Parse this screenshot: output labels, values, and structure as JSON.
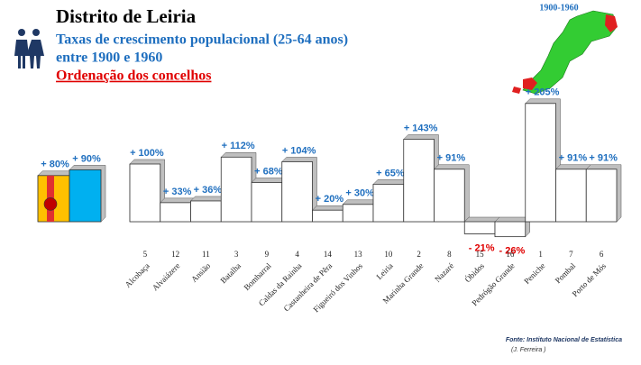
{
  "header": {
    "title": "Distrito de Leiria",
    "subtitle": [
      "Taxas de crescimento populacional (25-64 anos)",
      "entre 1900 e 1960"
    ],
    "ordering": "Ordenação dos concelhos",
    "map_label": "1900-1960"
  },
  "chart_data": {
    "type": "bar",
    "categories": [
      "Alcobaça",
      "Alvaiázere",
      "Ansião",
      "Batalha",
      "Bombarral",
      "Caldas da Rainha",
      "Castanheira de Pêra",
      "Figueiró dos Vinhos",
      "Leiria",
      "Marinha Grande",
      "Nazaré",
      "Óbidos",
      "Pedrógão Grande",
      "Peniche",
      "Pombal",
      "Porto de Mós"
    ],
    "ranks": [
      5,
      12,
      11,
      3,
      9,
      4,
      14,
      13,
      10,
      2,
      8,
      15,
      16,
      1,
      7,
      6
    ],
    "values": [
      100,
      33,
      36,
      112,
      68,
      104,
      20,
      30,
      65,
      143,
      91,
      -21,
      -26,
      205,
      91,
      91
    ],
    "value_labels": [
      "+ 100%",
      "+ 33%",
      "+ 36%",
      "+ 112%",
      "+ 68%",
      "+ 104%",
      "+ 20%",
      "+ 30%",
      "+ 65%",
      "+ 143%",
      "+ 91%",
      "- 21%",
      "- 26%",
      "+ 205%",
      "+ 91%",
      "+ 91%"
    ],
    "color": "#ffffff",
    "label_colors": {
      "positive": "#1f6fbf",
      "negative": "#e00000"
    },
    "reference_values": [
      80,
      90
    ],
    "reference_labels": [
      "+ 80%",
      "+ 90%"
    ],
    "reference_colors": [
      "#ffc000",
      "#00b0f0"
    ]
  },
  "source": [
    "Fonte: Instituto Nacional de Estatística",
    "(J. Ferreira )"
  ]
}
